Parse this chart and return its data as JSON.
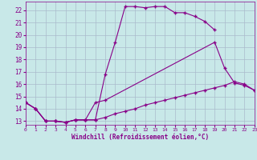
{
  "bg_color": "#c8e8e8",
  "line_color": "#880088",
  "grid_color": "#aabbcc",
  "xlabel": "Windchill (Refroidissement éolien,°C)",
  "xmin": 0,
  "xmax": 23,
  "ymin": 12.7,
  "ymax": 22.7,
  "yticks": [
    13,
    14,
    15,
    16,
    17,
    18,
    19,
    20,
    21,
    22
  ],
  "xticks": [
    0,
    1,
    2,
    3,
    4,
    5,
    6,
    7,
    8,
    9,
    10,
    11,
    12,
    13,
    14,
    15,
    16,
    17,
    18,
    19,
    20,
    21,
    22,
    23
  ],
  "curve1": {
    "x": [
      0,
      1,
      2,
      3,
      4,
      5,
      6,
      7,
      8,
      9,
      10,
      11,
      12,
      13,
      14,
      15,
      16,
      17,
      18,
      19
    ],
    "y": [
      14.5,
      14.0,
      13.0,
      13.0,
      12.9,
      13.1,
      13.1,
      13.1,
      16.8,
      19.4,
      22.3,
      22.3,
      22.2,
      22.3,
      22.3,
      21.8,
      21.8,
      21.5,
      21.1,
      20.4
    ]
  },
  "curve2": {
    "x": [
      0,
      1,
      2,
      3,
      4,
      5,
      6,
      7,
      8,
      19,
      20,
      21,
      22,
      23
    ],
    "y": [
      14.5,
      14.0,
      13.0,
      13.0,
      12.9,
      13.1,
      13.1,
      14.5,
      14.7,
      19.4,
      17.3,
      16.1,
      15.9,
      15.5
    ]
  },
  "curve3": {
    "x": [
      0,
      1,
      2,
      3,
      4,
      5,
      6,
      7,
      8,
      9,
      10,
      11,
      12,
      13,
      14,
      15,
      16,
      17,
      18,
      19,
      20,
      21,
      22,
      23
    ],
    "y": [
      14.5,
      14.0,
      13.0,
      13.0,
      12.9,
      13.1,
      13.1,
      13.1,
      13.3,
      13.6,
      13.8,
      14.0,
      14.3,
      14.5,
      14.7,
      14.9,
      15.1,
      15.3,
      15.5,
      15.7,
      15.9,
      16.2,
      16.0,
      15.5
    ]
  }
}
